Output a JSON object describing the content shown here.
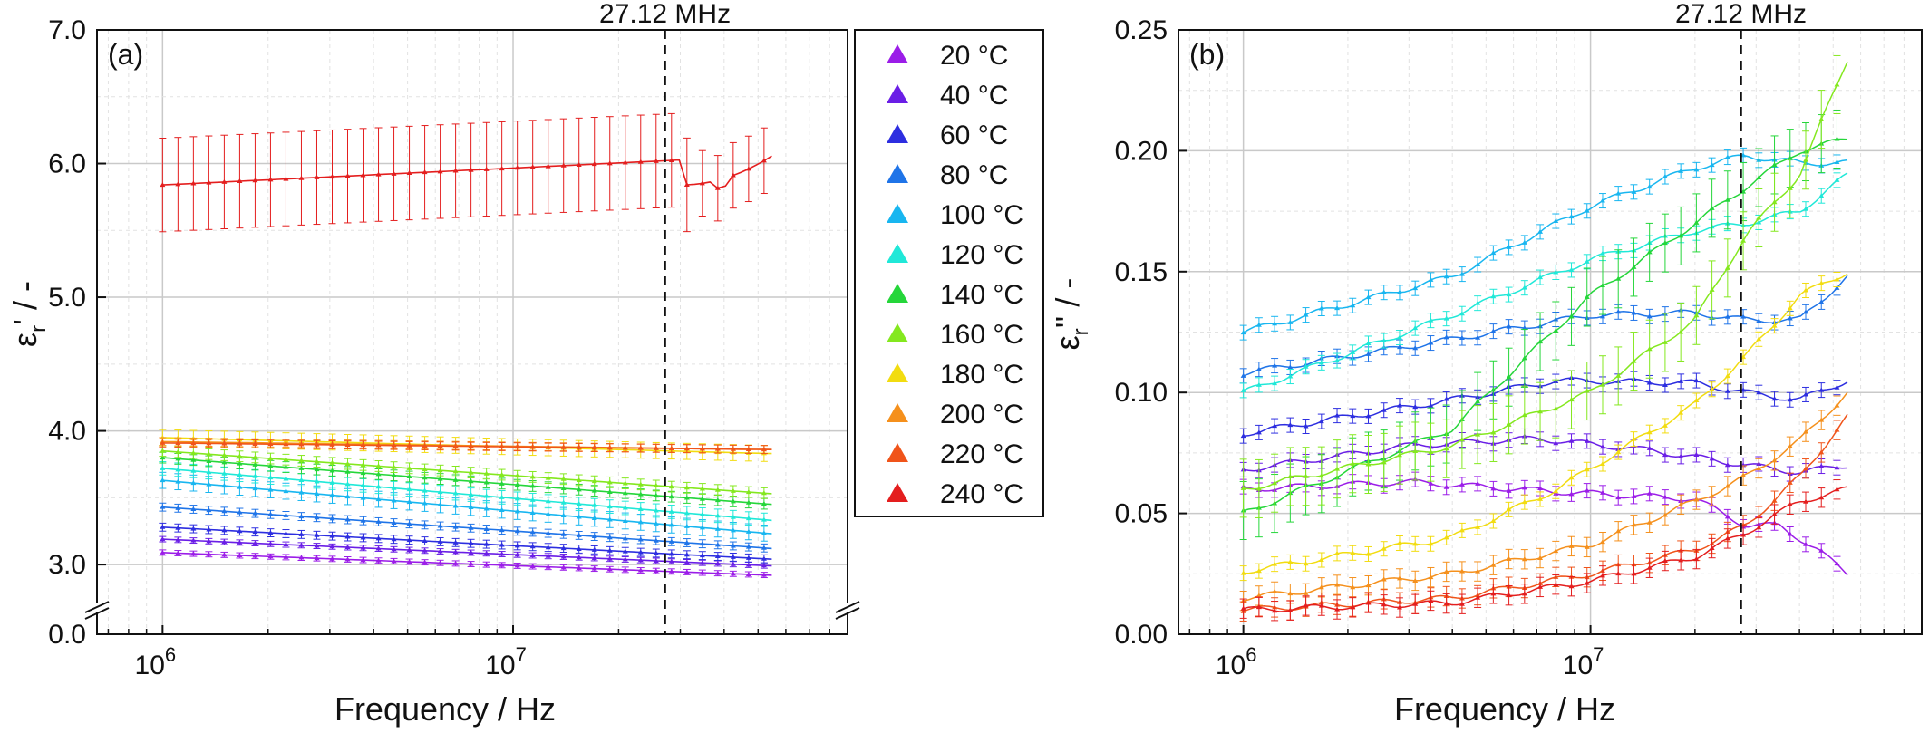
{
  "chart_data": [
    {
      "type": "line",
      "panel": "(a)",
      "xlabel": "Frequency / Hz",
      "ylabel_main": "ε",
      "ylabel_sub": "r",
      "ylabel_tail": "' / -",
      "xscale": "log",
      "xlim": [
        650000,
        90000000
      ],
      "x_ticks": [
        {
          "v": 1000000,
          "base": "10",
          "exp": "6"
        },
        {
          "v": 10000000,
          "base": "10",
          "exp": "7"
        }
      ],
      "y_break": {
        "lower": [
          0,
          0.2
        ],
        "upper": [
          2.75,
          7.0
        ]
      },
      "y_ticks": [
        {
          "v": 0.0,
          "label": "0.0"
        },
        {
          "v": 3.0,
          "label": "3.0"
        },
        {
          "v": 4.0,
          "label": "4.0"
        },
        {
          "v": 5.0,
          "label": "5.0"
        },
        {
          "v": 6.0,
          "label": "6.0"
        },
        {
          "v": 7.0,
          "label": "7.0"
        }
      ],
      "marker_line": {
        "x": 27120000,
        "label": "27.12 MHz"
      },
      "grid": true,
      "series": [
        {
          "name": "20 °C",
          "start": 3.09,
          "end": 2.92,
          "err": 0.02
        },
        {
          "name": "40 °C",
          "start": 3.19,
          "end": 2.99,
          "err": 0.02
        },
        {
          "name": "60 °C",
          "start": 3.28,
          "end": 3.04,
          "err": 0.03
        },
        {
          "name": "80 °C",
          "start": 3.43,
          "end": 3.12,
          "err": 0.03
        },
        {
          "name": "100 °C",
          "start": 3.63,
          "end": 3.23,
          "err": 0.06
        },
        {
          "name": "120 °C",
          "start": 3.72,
          "end": 3.33,
          "err": 0.05
        },
        {
          "name": "140 °C",
          "start": 3.8,
          "end": 3.45,
          "err": 0.04
        },
        {
          "name": "160 °C",
          "start": 3.85,
          "end": 3.53,
          "err": 0.04
        },
        {
          "name": "180 °C",
          "start": 3.95,
          "end": 3.83,
          "err": 0.06
        },
        {
          "name": "200 °C",
          "start": 3.92,
          "end": 3.86,
          "err": 0.03
        },
        {
          "name": "220 °C",
          "start": 3.91,
          "end": 3.86,
          "err": 0.03
        },
        {
          "name": "240 °C",
          "start": 5.84,
          "end": 6.06,
          "err": 0.35
        }
      ]
    },
    {
      "type": "line",
      "panel": "(b)",
      "xlabel": "Frequency / Hz",
      "ylabel_main": "ε",
      "ylabel_sub": "r",
      "ylabel_tail": "'' / -",
      "xscale": "log",
      "xlim": [
        650000,
        90000000
      ],
      "ylim": [
        0,
        0.25
      ],
      "x_ticks": [
        {
          "v": 1000000,
          "base": "10",
          "exp": "6"
        },
        {
          "v": 10000000,
          "base": "10",
          "exp": "7"
        }
      ],
      "y_ticks": [
        {
          "v": 0.0,
          "label": "0.00"
        },
        {
          "v": 0.05,
          "label": "0.05"
        },
        {
          "v": 0.1,
          "label": "0.10"
        },
        {
          "v": 0.15,
          "label": "0.15"
        },
        {
          "v": 0.2,
          "label": "0.20"
        },
        {
          "v": 0.25,
          "label": "0.25"
        }
      ],
      "marker_line": {
        "x": 27120000,
        "label": "27.12 MHz"
      },
      "grid": true,
      "series": [
        {
          "name": "20 °C",
          "points": [
            [
              1000000,
              0.06
            ],
            [
              3000000,
              0.063
            ],
            [
              8000000,
              0.059
            ],
            [
              20000000,
              0.056
            ],
            [
              28000000,
              0.045
            ],
            [
              35000000,
              0.045
            ],
            [
              45000000,
              0.035
            ],
            [
              55000000,
              0.025
            ]
          ]
        },
        {
          "name": "40 °C",
          "points": [
            [
              1000000,
              0.068
            ],
            [
              3000000,
              0.078
            ],
            [
              7000000,
              0.081
            ],
            [
              15000000,
              0.076
            ],
            [
              28000000,
              0.07
            ],
            [
              40000000,
              0.067
            ],
            [
              55000000,
              0.07
            ]
          ]
        },
        {
          "name": "60 °C",
          "points": [
            [
              1000000,
              0.083
            ],
            [
              4000000,
              0.097
            ],
            [
              8000000,
              0.105
            ],
            [
              20000000,
              0.104
            ],
            [
              28000000,
              0.1
            ],
            [
              40000000,
              0.097
            ],
            [
              55000000,
              0.105
            ]
          ]
        },
        {
          "name": "80 °C",
          "points": [
            [
              1000000,
              0.108
            ],
            [
              4000000,
              0.122
            ],
            [
              10000000,
              0.132
            ],
            [
              20000000,
              0.133
            ],
            [
              28000000,
              0.13
            ],
            [
              40000000,
              0.13
            ],
            [
              55000000,
              0.148
            ]
          ]
        },
        {
          "name": "100 °C",
          "points": [
            [
              1000000,
              0.125
            ],
            [
              4000000,
              0.148
            ],
            [
              10000000,
              0.177
            ],
            [
              20000000,
              0.193
            ],
            [
              28000000,
              0.198
            ],
            [
              40000000,
              0.195
            ],
            [
              55000000,
              0.195
            ]
          ]
        },
        {
          "name": "120 °C",
          "points": [
            [
              1000000,
              0.1
            ],
            [
              4000000,
              0.132
            ],
            [
              10000000,
              0.155
            ],
            [
              20000000,
              0.167
            ],
            [
              28000000,
              0.17
            ],
            [
              40000000,
              0.175
            ],
            [
              55000000,
              0.19
            ]
          ]
        },
        {
          "name": "140 °C",
          "points": [
            [
              1000000,
              0.05
            ],
            [
              4000000,
              0.085
            ],
            [
              10000000,
              0.14
            ],
            [
              20000000,
              0.17
            ],
            [
              28000000,
              0.185
            ],
            [
              40000000,
              0.2
            ],
            [
              55000000,
              0.205
            ]
          ]
        },
        {
          "name": "160 °C",
          "points": [
            [
              1000000,
              0.06
            ],
            [
              4000000,
              0.078
            ],
            [
              10000000,
              0.1
            ],
            [
              20000000,
              0.13
            ],
            [
              28000000,
              0.165
            ],
            [
              40000000,
              0.19
            ],
            [
              55000000,
              0.238
            ]
          ]
        },
        {
          "name": "180 °C",
          "points": [
            [
              1000000,
              0.026
            ],
            [
              4000000,
              0.04
            ],
            [
              8000000,
              0.06
            ],
            [
              20000000,
              0.095
            ],
            [
              28000000,
              0.115
            ],
            [
              40000000,
              0.14
            ],
            [
              55000000,
              0.15
            ]
          ]
        },
        {
          "name": "200 °C",
          "points": [
            [
              1000000,
              0.015
            ],
            [
              4000000,
              0.025
            ],
            [
              10000000,
              0.037
            ],
            [
              20000000,
              0.055
            ],
            [
              28000000,
              0.065
            ],
            [
              40000000,
              0.08
            ],
            [
              55000000,
              0.1
            ]
          ]
        },
        {
          "name": "220 °C",
          "points": [
            [
              1000000,
              0.01
            ],
            [
              4000000,
              0.015
            ],
            [
              10000000,
              0.025
            ],
            [
              20000000,
              0.035
            ],
            [
              28000000,
              0.045
            ],
            [
              40000000,
              0.065
            ],
            [
              55000000,
              0.09
            ]
          ]
        },
        {
          "name": "240 °C",
          "points": [
            [
              1000000,
              0.01
            ],
            [
              4000000,
              0.013
            ],
            [
              10000000,
              0.022
            ],
            [
              20000000,
              0.032
            ],
            [
              28000000,
              0.042
            ],
            [
              40000000,
              0.055
            ],
            [
              55000000,
              0.06
            ]
          ]
        }
      ]
    }
  ],
  "legend": {
    "placement": "between panels",
    "items": [
      {
        "label": "20 °C",
        "color": "#9b1de8"
      },
      {
        "label": "40 °C",
        "color": "#6a1ee6"
      },
      {
        "label": "60 °C",
        "color": "#2d2ee0"
      },
      {
        "label": "80 °C",
        "color": "#1f74e8"
      },
      {
        "label": "100 °C",
        "color": "#18b6f0"
      },
      {
        "label": "120 °C",
        "color": "#20e8d8"
      },
      {
        "label": "140 °C",
        "color": "#25d63a"
      },
      {
        "label": "160 °C",
        "color": "#84e81e"
      },
      {
        "label": "180 °C",
        "color": "#f2dc10"
      },
      {
        "label": "200 °C",
        "color": "#f5901c"
      },
      {
        "label": "220 °C",
        "color": "#f0541a"
      },
      {
        "label": "240 °C",
        "color": "#e41e1e"
      }
    ]
  }
}
